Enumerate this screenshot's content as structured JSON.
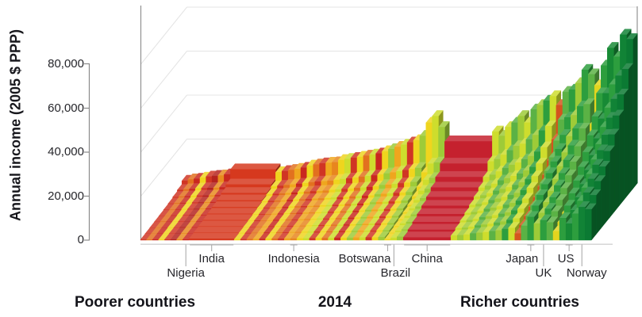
{
  "chart_data": {
    "type": "3d_decile_ribbons",
    "title": "",
    "ylabel": "Annual income (2005 $ PPP)",
    "year_label": "2014",
    "ylim": [
      0,
      80000
    ],
    "y_ticks": [
      0,
      20000,
      40000,
      60000,
      80000
    ],
    "y_tick_labels": [
      "0",
      "20,000",
      "40,000",
      "60,000",
      "80,000"
    ],
    "values_unit": "thousand $ (2005 PPP), deciles front(poorest)-to-back(richest)",
    "captions": {
      "left": "Poorer countries",
      "center": "2014",
      "right": "Richer countries"
    },
    "countries": [
      {
        "name": "Nigeria",
        "strip": 7,
        "row": 2,
        "marker": "line",
        "dx": 0
      },
      {
        "name": "India",
        "strip": 8,
        "row": 1,
        "marker": "bracket",
        "dx": 0
      },
      {
        "name": "Indonesia",
        "strip": 18,
        "row": 1,
        "marker": "tick",
        "dx": 0
      },
      {
        "name": "Botswana",
        "strip": 33,
        "row": 1,
        "marker": "tick",
        "dx": -29
      },
      {
        "name": "Brazil",
        "strip": 34,
        "row": 2,
        "marker": "line",
        "dx": 2
      },
      {
        "name": "China",
        "strip": 36,
        "row": 1,
        "marker": "bracket",
        "dx": 0
      },
      {
        "name": "Japan",
        "strip": 49,
        "row": 1,
        "marker": "tick",
        "dx": -11
      },
      {
        "name": "UK",
        "strip": 51,
        "row": 2,
        "marker": "line",
        "dx": 0
      },
      {
        "name": "US",
        "strip": 55,
        "row": 1,
        "marker": "tick",
        "dx": -4
      },
      {
        "name": "Norway",
        "strip": 57,
        "row": 2,
        "marker": "line",
        "dx": 6
      }
    ],
    "strips": [
      {
        "c": "#d03524",
        "w": 7.6,
        "v": [
          0.2,
          0.3,
          0.4,
          0.5,
          0.6,
          0.8,
          1.0,
          1.4,
          2.0,
          3.6
        ]
      },
      {
        "c": "#e2711f",
        "w": 7.6,
        "v": [
          0.2,
          0.3,
          0.4,
          0.6,
          0.7,
          0.9,
          1.2,
          1.6,
          2.3,
          4.2
        ]
      },
      {
        "c": "#c9281f",
        "w": 7.6,
        "v": [
          0.3,
          0.4,
          0.5,
          0.6,
          0.8,
          1.0,
          1.3,
          1.7,
          2.4,
          4.5
        ]
      },
      {
        "c": "#efd51e",
        "w": 7.6,
        "v": [
          0.2,
          0.3,
          0.5,
          0.6,
          0.8,
          1.1,
          1.4,
          1.9,
          2.7,
          5.0
        ]
      },
      {
        "c": "#d03524",
        "w": 7.6,
        "v": [
          0.3,
          0.4,
          0.5,
          0.7,
          0.9,
          1.1,
          1.5,
          2.0,
          2.8,
          5.5
        ]
      },
      {
        "c": "#b5231f",
        "w": 7.6,
        "v": [
          0.3,
          0.4,
          0.6,
          0.7,
          0.9,
          1.2,
          1.5,
          2.0,
          2.9,
          5.8
        ]
      },
      {
        "c": "#e88b1e",
        "w": 7.6,
        "v": [
          0.3,
          0.5,
          0.6,
          0.8,
          1.0,
          1.3,
          1.6,
          2.1,
          3.0,
          6.0
        ]
      },
      {
        "name": "Nigeria",
        "c": "#c9281f",
        "w": 8,
        "v": [
          0.3,
          0.4,
          0.6,
          0.8,
          1.0,
          1.3,
          1.7,
          2.2,
          3.2,
          6.5
        ]
      },
      {
        "name": "India",
        "c": "#d6391e",
        "w": 57,
        "v": [
          0.6,
          0.8,
          1.0,
          1.3,
          1.6,
          2.0,
          2.5,
          3.2,
          4.5,
          8.8
        ]
      },
      {
        "c": "#efd51e",
        "w": 7.89,
        "v": [
          0.4,
          0.6,
          0.8,
          1.0,
          1.3,
          1.6,
          2.0,
          2.6,
          3.6,
          7.5
        ]
      },
      {
        "c": "#d03524",
        "w": 7.89,
        "v": [
          0.4,
          0.6,
          0.8,
          1.1,
          1.4,
          1.7,
          2.2,
          2.8,
          3.9,
          8.0
        ]
      },
      {
        "c": "#e2711f",
        "w": 7.89,
        "v": [
          0.5,
          0.7,
          0.9,
          1.1,
          1.4,
          1.8,
          2.3,
          3.0,
          4.2,
          8.5
        ]
      },
      {
        "c": "#efa61e",
        "w": 7.89,
        "v": [
          0.5,
          0.7,
          0.9,
          1.2,
          1.5,
          1.9,
          2.4,
          3.2,
          4.5,
          9.0
        ]
      },
      {
        "c": "#c9281f",
        "w": 7.89,
        "v": [
          0.5,
          0.8,
          1.0,
          1.3,
          1.6,
          2.0,
          2.6,
          3.4,
          4.8,
          9.5
        ]
      },
      {
        "c": "#efd51e",
        "w": 7.89,
        "v": [
          0.6,
          0.8,
          1.1,
          1.4,
          1.7,
          2.2,
          2.8,
          3.6,
          5.1,
          10.5
        ]
      },
      {
        "c": "#e2711f",
        "w": 7.89,
        "v": [
          0.6,
          0.9,
          1.1,
          1.4,
          1.8,
          2.3,
          2.9,
          3.8,
          5.5,
          11.0
        ]
      },
      {
        "c": "#d03524",
        "w": 7.89,
        "v": [
          0.6,
          0.9,
          1.2,
          1.5,
          1.9,
          2.4,
          3.0,
          4.0,
          5.8,
          11.5
        ]
      },
      {
        "c": "#efa61e",
        "w": 7.89,
        "v": [
          0.7,
          1.0,
          1.2,
          1.6,
          2.0,
          2.5,
          3.2,
          4.1,
          6.0,
          11.8
        ]
      },
      {
        "name": "Indonesia",
        "c": "#e8861e",
        "w": 7.89,
        "v": [
          0.7,
          1.0,
          1.3,
          1.7,
          2.1,
          2.6,
          3.3,
          4.3,
          6.2,
          12.0
        ]
      },
      {
        "c": "#efd51e",
        "w": 7.89,
        "v": [
          0.8,
          1.1,
          1.4,
          1.8,
          2.2,
          2.8,
          3.5,
          4.6,
          6.6,
          13.0
        ]
      },
      {
        "c": "#cedd2d",
        "w": 7.89,
        "v": [
          0.8,
          1.1,
          1.5,
          1.9,
          2.3,
          2.9,
          3.7,
          4.8,
          7.0,
          13.5
        ]
      },
      {
        "c": "#d03524",
        "w": 7.89,
        "v": [
          0.8,
          1.2,
          1.5,
          1.9,
          2.4,
          3.0,
          3.8,
          5.0,
          7.2,
          14.0
        ]
      },
      {
        "c": "#efd51e",
        "w": 7.89,
        "v": [
          0.9,
          1.2,
          1.6,
          2.0,
          2.5,
          3.1,
          4.0,
          5.2,
          7.6,
          14.5
        ]
      },
      {
        "c": "#e2711f",
        "w": 7.89,
        "v": [
          0.9,
          1.3,
          1.7,
          2.1,
          2.6,
          3.3,
          4.2,
          5.5,
          8.0,
          15.0
        ]
      },
      {
        "c": "#cedd2d",
        "w": 7.89,
        "v": [
          0.9,
          1.3,
          1.7,
          2.2,
          2.7,
          3.4,
          4.3,
          5.7,
          8.3,
          15.5
        ]
      },
      {
        "c": "#c9281f",
        "w": 7.89,
        "v": [
          1.0,
          1.4,
          1.8,
          2.3,
          2.8,
          3.5,
          4.5,
          5.9,
          8.6,
          16.0
        ]
      },
      {
        "c": "#efd51e",
        "w": 7.89,
        "v": [
          1.0,
          1.4,
          1.9,
          2.4,
          3.0,
          3.7,
          4.7,
          6.2,
          9.0,
          17.0
        ]
      },
      {
        "c": "#9ecb38",
        "w": 7.89,
        "v": [
          1.0,
          1.5,
          2.0,
          2.6,
          3.3,
          4.1,
          5.2,
          6.8,
          9.5,
          18.0
        ]
      },
      {
        "c": "#efa61e",
        "w": 7.89,
        "v": [
          1.1,
          1.6,
          2.1,
          2.7,
          3.4,
          4.2,
          5.4,
          7.0,
          10.0,
          19.0
        ]
      },
      {
        "c": "#cedd2d",
        "w": 7.89,
        "v": [
          1.1,
          1.6,
          2.2,
          2.8,
          3.5,
          4.4,
          5.6,
          7.3,
          10.5,
          20.0
        ]
      },
      {
        "c": "#d03524",
        "w": 7.89,
        "v": [
          1.2,
          1.7,
          2.2,
          2.9,
          3.6,
          4.5,
          5.8,
          7.6,
          11.0,
          21.0
        ]
      },
      {
        "c": "#efd51e",
        "w": 7.89,
        "v": [
          1.2,
          1.8,
          2.3,
          3.0,
          3.8,
          4.7,
          6.0,
          7.9,
          11.5,
          22.0
        ]
      },
      {
        "c": "#9ecb38",
        "w": 7.89,
        "v": [
          1.3,
          1.8,
          2.4,
          3.1,
          3.9,
          4.9,
          6.2,
          8.2,
          12.0,
          24.0
        ]
      },
      {
        "name": "Botswana",
        "c": "#efd51e",
        "w": 7.89,
        "v": [
          0.4,
          0.7,
          1.1,
          1.6,
          2.2,
          3.0,
          4.2,
          6.0,
          10.0,
          30.0
        ]
      },
      {
        "name": "Brazil",
        "c": "#cedd2d",
        "w": 7.89,
        "v": [
          1.0,
          1.6,
          2.3,
          3.1,
          4.0,
          5.2,
          6.8,
          9.2,
          14.0,
          33.0
        ]
      },
      {
        "c": "#9ecb38",
        "w": 7.89,
        "v": [
          1.5,
          2.2,
          3.0,
          3.8,
          4.8,
          6.0,
          7.6,
          10.0,
          14.5,
          28.0
        ]
      },
      {
        "name": "China",
        "c": "#c5212e",
        "w": 60,
        "v": [
          1.2,
          2.1,
          3.0,
          4.0,
          5.2,
          6.6,
          8.3,
          10.5,
          14.0,
          21.5
        ]
      },
      {
        "c": "#cedd2d",
        "w": 8.05,
        "v": [
          2.0,
          2.8,
          3.6,
          4.5,
          5.5,
          6.7,
          8.2,
          10.5,
          15.0,
          26.0
        ]
      },
      {
        "c": "#9ecb38",
        "w": 8.05,
        "v": [
          2.2,
          3.0,
          3.9,
          4.9,
          6.0,
          7.3,
          9.0,
          11.5,
          16.0,
          24.0
        ]
      },
      {
        "c": "#cedd2d",
        "w": 8.05,
        "v": [
          2.5,
          3.4,
          4.4,
          5.5,
          6.7,
          8.2,
          10.0,
          13.0,
          18.0,
          28.0
        ]
      },
      {
        "c": "#5bb245",
        "w": 8.05,
        "v": [
          3.0,
          4.0,
          5.1,
          6.3,
          7.7,
          9.4,
          11.5,
          14.5,
          20.0,
          30.0
        ]
      },
      {
        "c": "#9ecb38",
        "w": 8.05,
        "v": [
          3.3,
          4.4,
          5.6,
          6.9,
          8.4,
          10.2,
          12.5,
          16.0,
          22.0,
          33.0
        ]
      },
      {
        "c": "#cedd2d",
        "w": 8.05,
        "v": [
          3.6,
          4.8,
          6.1,
          7.5,
          9.1,
          11.0,
          13.5,
          17.0,
          23.0,
          30.0
        ]
      },
      {
        "c": "#5bb245",
        "w": 8.05,
        "v": [
          4.0,
          5.3,
          6.7,
          8.2,
          10.0,
          12.0,
          14.6,
          18.5,
          25.0,
          36.0
        ]
      },
      {
        "c": "#9ecb38",
        "w": 8.05,
        "v": [
          4.4,
          5.8,
          7.3,
          9.0,
          11.0,
          13.2,
          16.0,
          20.0,
          27.0,
          38.0
        ]
      },
      {
        "c": "#2d9e3e",
        "w": 8.05,
        "v": [
          5.0,
          6.5,
          8.2,
          10.0,
          12.2,
          14.6,
          17.6,
          22.0,
          29.0,
          40.0
        ]
      },
      {
        "c": "#cedd2d",
        "w": 8.05,
        "v": [
          5.5,
          7.2,
          9.0,
          11.0,
          13.3,
          16.0,
          19.2,
          24.0,
          31.0,
          42.0
        ]
      },
      {
        "c": "#d4541e",
        "w": 8.05,
        "v": [
          3.0,
          4.2,
          5.6,
          7.2,
          9.0,
          11.3,
          14.0,
          18.0,
          25.0,
          38.0
        ]
      },
      {
        "c": "#5bb245",
        "w": 8.05,
        "v": [
          6.5,
          8.4,
          10.5,
          12.8,
          15.4,
          18.4,
          22.0,
          27.0,
          34.0,
          44.0
        ]
      },
      {
        "name": "Japan",
        "c": "#2d9e3e",
        "w": 8.05,
        "v": [
          10.5,
          13.0,
          15.2,
          17.5,
          20.0,
          22.7,
          25.8,
          29.6,
          35.0,
          45.0
        ]
      },
      {
        "c": "#9ecb38",
        "w": 8.05,
        "v": [
          7.5,
          9.7,
          12.0,
          14.5,
          17.3,
          20.5,
          24.2,
          29.0,
          36.0,
          48.0
        ]
      },
      {
        "name": "UK",
        "c": "#2d9e3e",
        "w": 8.05,
        "v": [
          9.0,
          11.6,
          14.2,
          17.0,
          20.0,
          23.4,
          27.4,
          32.5,
          40.0,
          54.0
        ]
      },
      {
        "c": "#5bb245",
        "w": 8.05,
        "v": [
          8.0,
          10.4,
          13.0,
          15.8,
          19.0,
          22.6,
          27.0,
          32.5,
          41.0,
          52.0
        ]
      },
      {
        "c": "#e3d51e",
        "w": 8.05,
        "v": [
          4.0,
          5.6,
          7.4,
          9.4,
          11.8,
          14.6,
          18.0,
          23.0,
          32.0,
          47.0
        ]
      },
      {
        "c": "#2d9e3e",
        "w": 8.05,
        "v": [
          10.0,
          13.0,
          16.0,
          19.2,
          22.8,
          27.0,
          32.0,
          38.0,
          46.0,
          56.0
        ]
      },
      {
        "name": "US",
        "c": "#178a35",
        "w": 8.05,
        "v": [
          7.5,
          11.0,
          14.2,
          17.6,
          21.4,
          25.6,
          30.6,
          37.0,
          46.0,
          64.0
        ]
      },
      {
        "c": "#2d9e3e",
        "w": 8.05,
        "v": [
          12.0,
          15.2,
          18.6,
          22.2,
          26.2,
          30.6,
          35.8,
          42.0,
          50.0,
          60.0
        ]
      },
      {
        "name": "Norway",
        "c": "#118336",
        "w": 8.05,
        "v": [
          15.0,
          19.0,
          22.6,
          26.4,
          30.4,
          34.8,
          40.0,
          46.0,
          54.0,
          70.0
        ]
      },
      {
        "c": "#0b7a33",
        "w": 8.05,
        "v": [
          14.0,
          17.8,
          21.6,
          25.6,
          30.0,
          35.0,
          41.0,
          48.0,
          57.0,
          68.0
        ]
      }
    ],
    "style": {
      "grid_color": "#e4e4e4",
      "axis_color": "#8a8a8a",
      "marker_color": "#ababab",
      "baseline_color": "#c9c9c9",
      "text_color": "#26262b"
    }
  }
}
